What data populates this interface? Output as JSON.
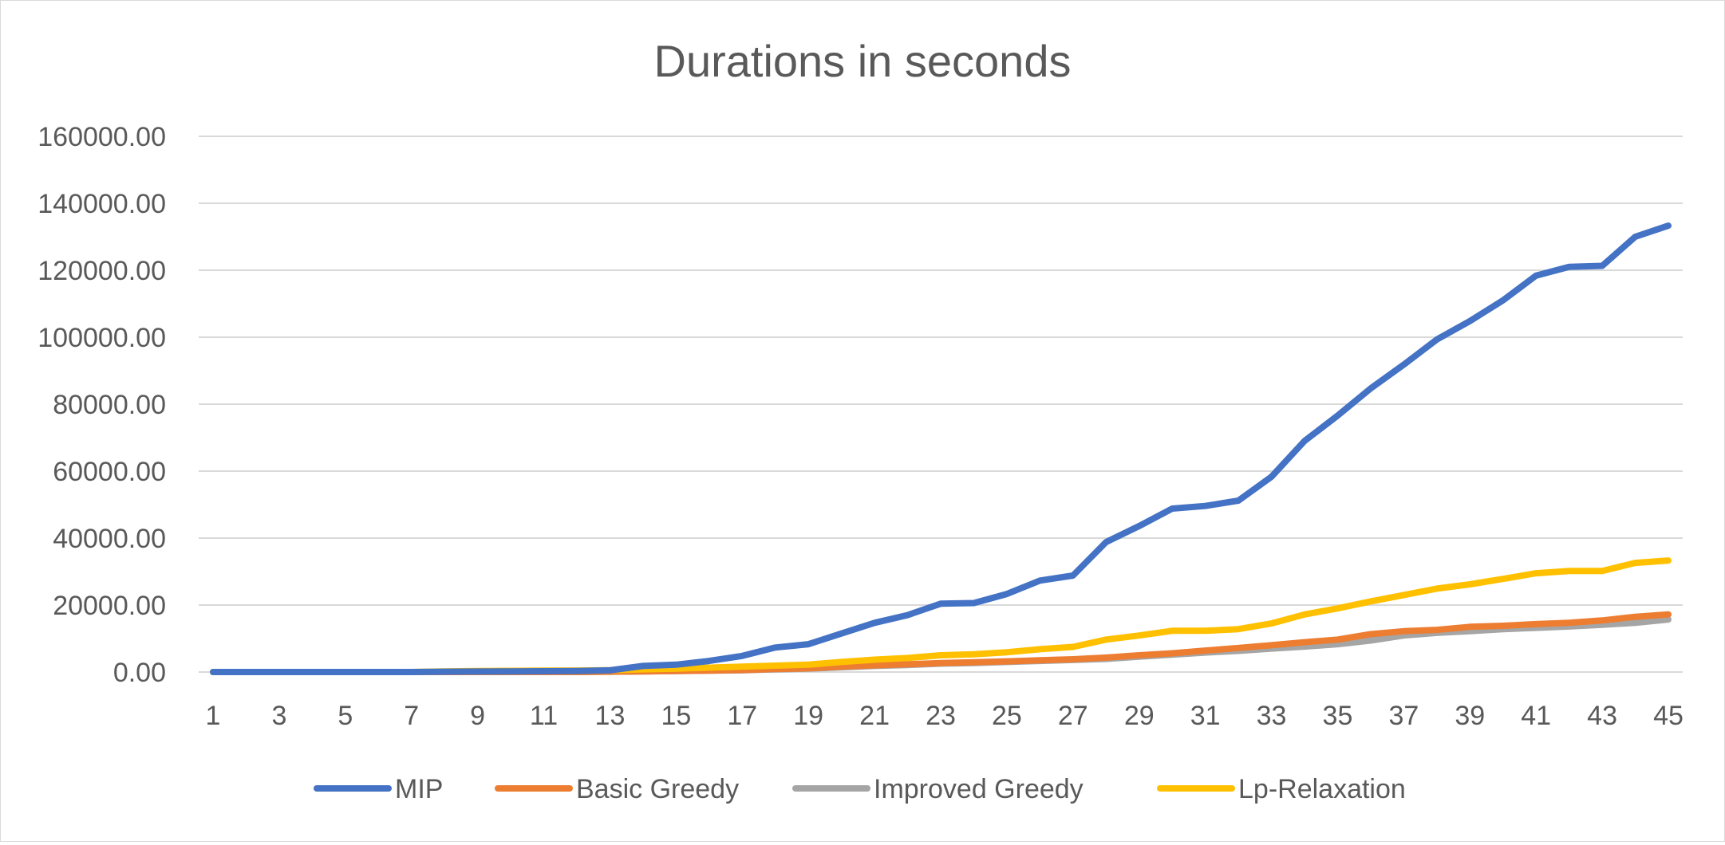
{
  "chart_data": {
    "type": "line",
    "title": "Durations in seconds",
    "xlabel": "",
    "ylabel": "",
    "ylim": [
      0,
      160000
    ],
    "ytick_values": [
      0,
      20000,
      40000,
      60000,
      80000,
      100000,
      120000,
      140000,
      160000
    ],
    "ytick_labels": [
      "0.00",
      "20000.00",
      "40000.00",
      "60000.00",
      "80000.00",
      "100000.00",
      "120000.00",
      "140000.00",
      "160000.00"
    ],
    "x": [
      1,
      2,
      3,
      4,
      5,
      6,
      7,
      8,
      9,
      10,
      11,
      12,
      13,
      14,
      15,
      16,
      17,
      18,
      19,
      20,
      21,
      22,
      23,
      24,
      25,
      26,
      27,
      28,
      29,
      30,
      31,
      32,
      33,
      34,
      35,
      36,
      37,
      38,
      39,
      40,
      41,
      42,
      43,
      44,
      45
    ],
    "xtick_labels": [
      "1",
      "3",
      "5",
      "7",
      "9",
      "11",
      "13",
      "15",
      "17",
      "19",
      "21",
      "23",
      "25",
      "27",
      "29",
      "31",
      "33",
      "35",
      "37",
      "39",
      "41",
      "43",
      "45"
    ],
    "grid": true,
    "legend_position": "bottom",
    "series": [
      {
        "name": "MIP",
        "color": "#4472C4",
        "values": [
          0,
          0,
          0,
          0,
          0,
          0,
          0,
          100,
          150,
          200,
          250,
          300,
          500,
          1800,
          2200,
          3300,
          4800,
          7300,
          8300,
          11500,
          14700,
          17000,
          20400,
          20600,
          23300,
          27300,
          28800,
          38800,
          43600,
          48800,
          49600,
          51200,
          58300,
          69000,
          76600,
          84700,
          91800,
          99300,
          104800,
          111000,
          118400,
          121000,
          121300,
          130000,
          133300
        ]
      },
      {
        "name": "Basic Greedy",
        "color": "#ED7D31",
        "values": [
          0,
          0,
          0,
          0,
          0,
          0,
          0,
          0,
          0,
          0,
          0,
          0,
          100,
          200,
          300,
          400,
          600,
          900,
          1100,
          1600,
          2000,
          2300,
          2700,
          2900,
          3200,
          3500,
          3800,
          4300,
          5000,
          5600,
          6400,
          7200,
          8000,
          8900,
          9700,
          11300,
          12200,
          12600,
          13500,
          13800,
          14300,
          14700,
          15400,
          16500,
          17200
        ]
      },
      {
        "name": "Improved Greedy",
        "color": "#A5A5A5",
        "values": [
          0,
          0,
          0,
          0,
          0,
          0,
          0,
          0,
          0,
          0,
          0,
          0,
          100,
          200,
          300,
          400,
          500,
          800,
          1000,
          1400,
          1800,
          2100,
          2500,
          2700,
          3000,
          3300,
          3600,
          3900,
          4600,
          5200,
          5800,
          6300,
          7000,
          7600,
          8300,
          9400,
          10900,
          11700,
          12200,
          12800,
          13200,
          13600,
          14100,
          14700,
          15700
        ]
      },
      {
        "name": "Lp-Relaxation",
        "color": "#FFC000",
        "values": [
          0,
          0,
          0,
          0,
          0,
          0,
          0,
          200,
          300,
          350,
          400,
          450,
          550,
          800,
          1000,
          1300,
          1600,
          1900,
          2200,
          3000,
          3700,
          4200,
          5000,
          5300,
          5900,
          6800,
          7500,
          9700,
          10900,
          12300,
          12300,
          12800,
          14500,
          17200,
          19000,
          21100,
          23000,
          24900,
          26200,
          27800,
          29500,
          30200,
          30200,
          32600,
          33300
        ]
      }
    ]
  }
}
